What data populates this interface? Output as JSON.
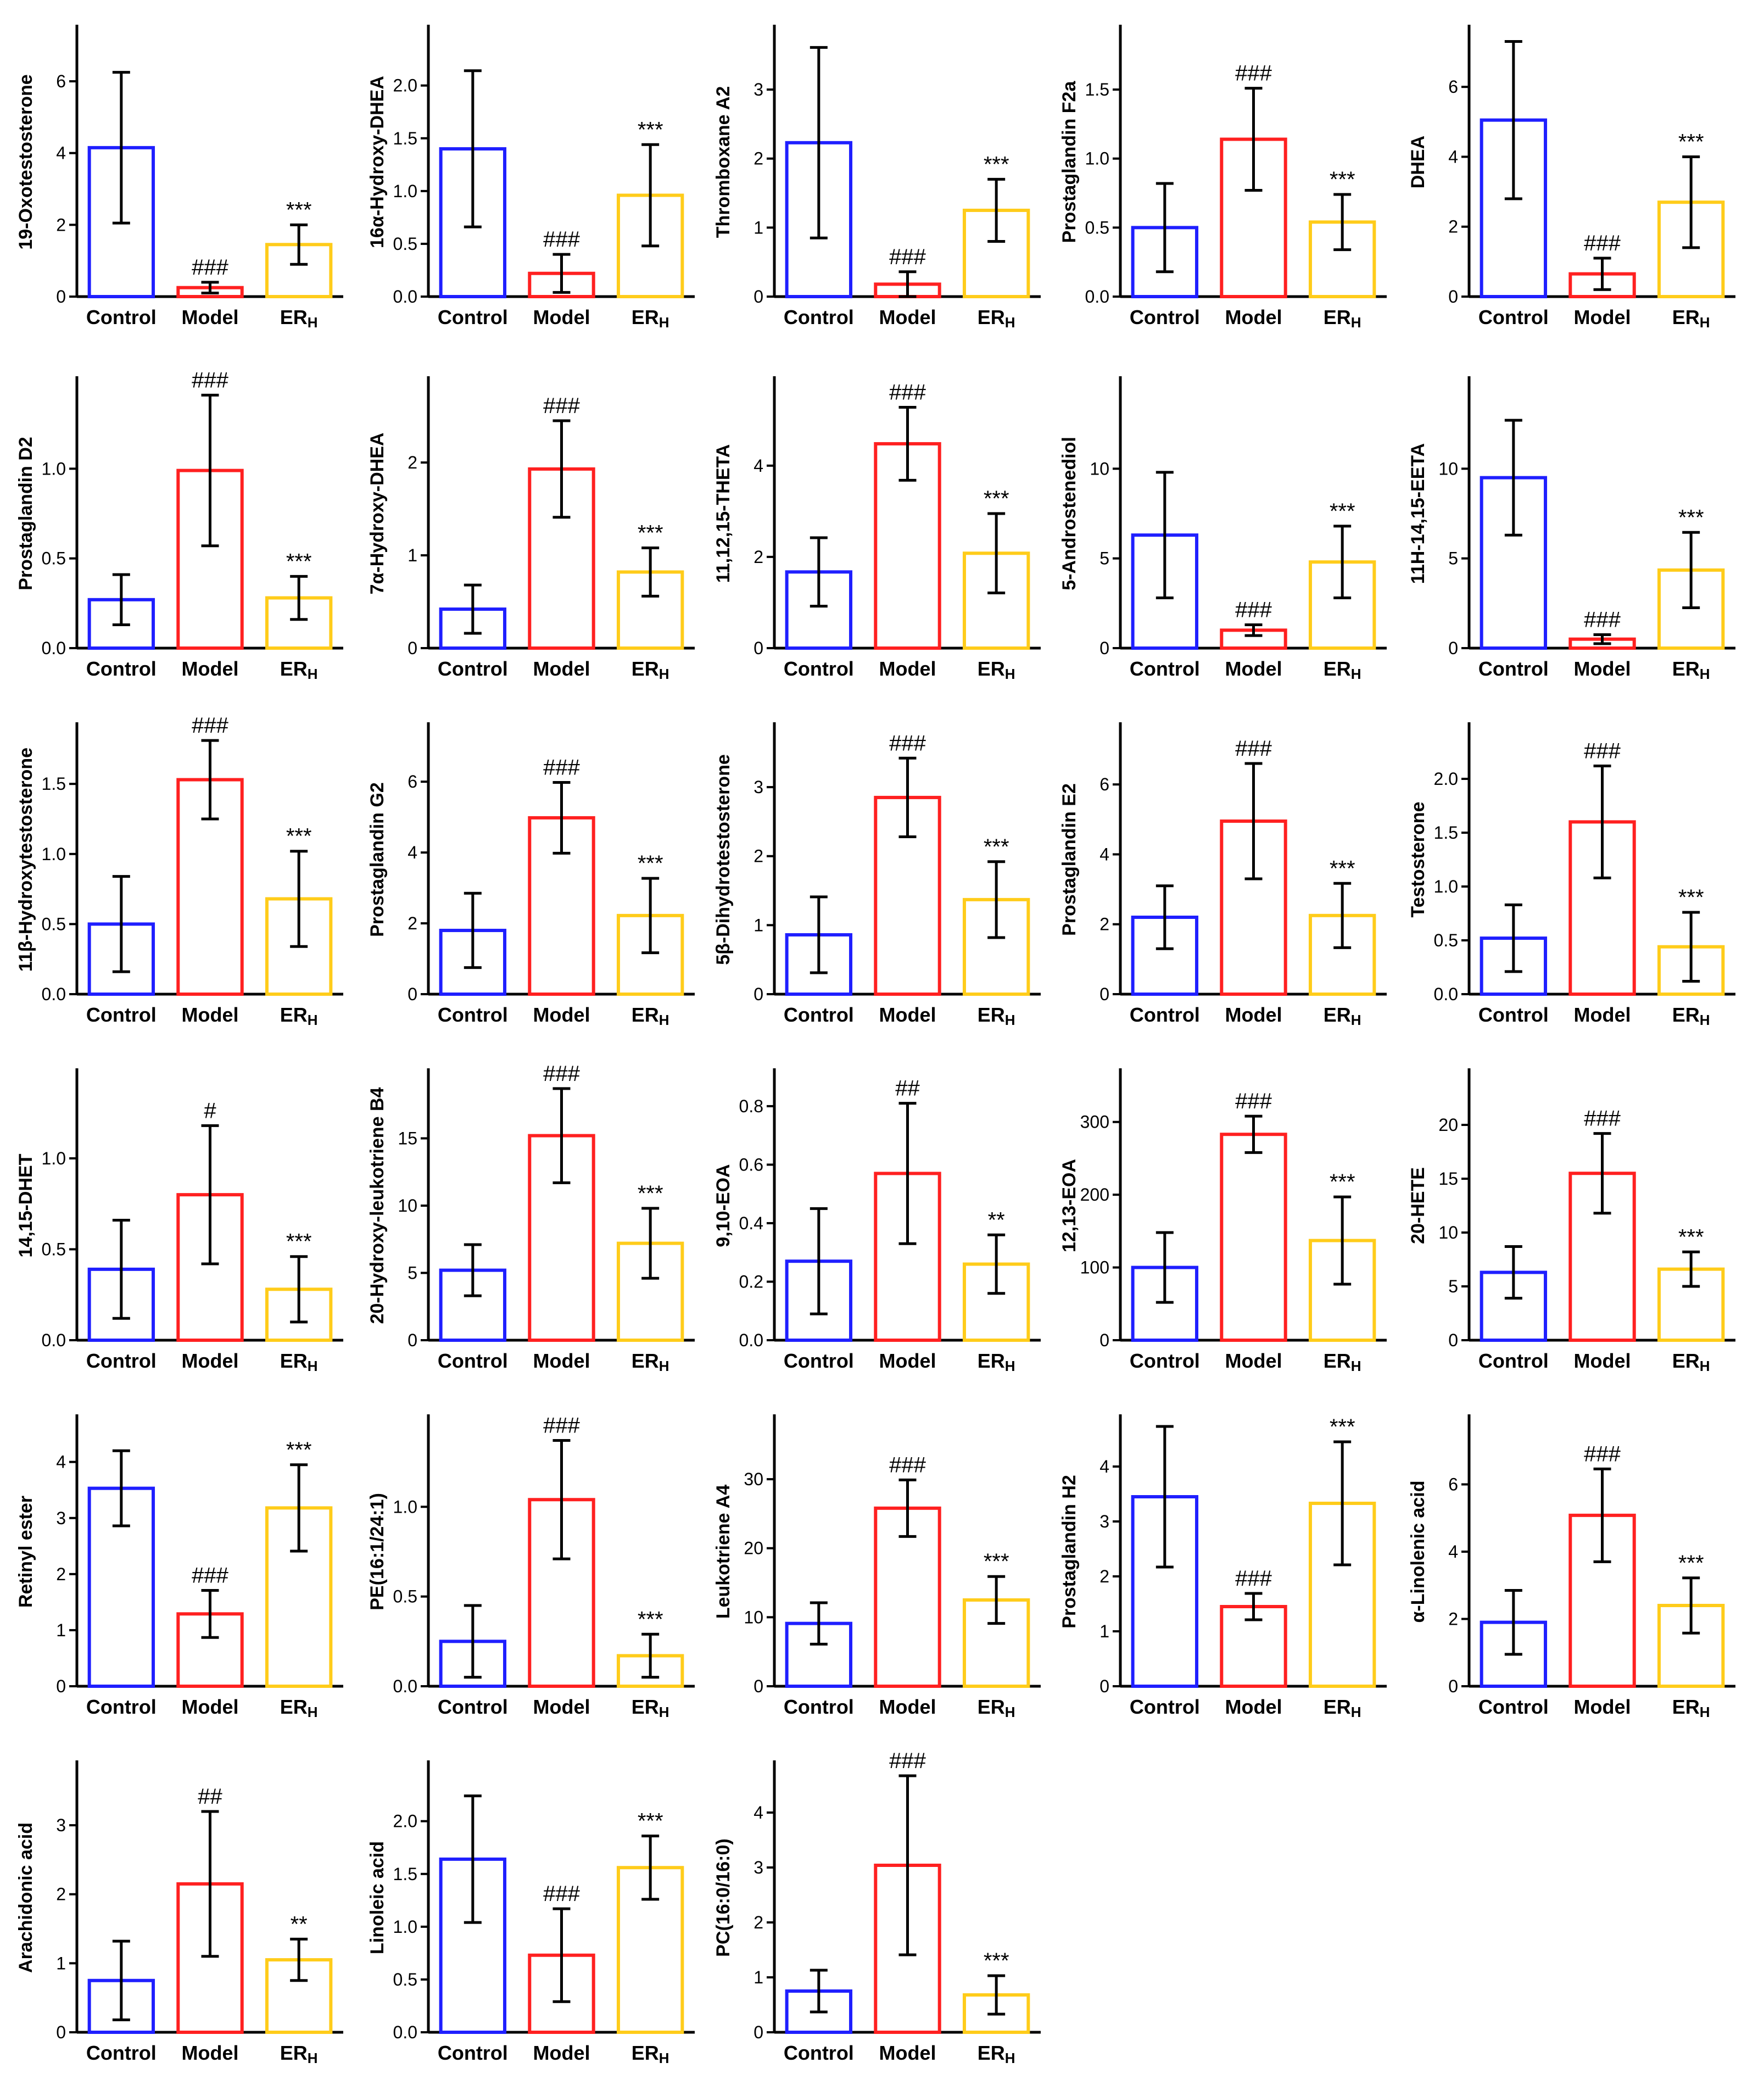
{
  "colors": {
    "Control": "#1f1fff",
    "Model": "#ff2020",
    "ERH": "#ffcc1a"
  },
  "chart_data": [
    {
      "type": "bar",
      "ylabel": "19-Oxotestosterone",
      "categories": [
        "Control",
        "Model",
        "ERH"
      ],
      "values": [
        4.15,
        0.25,
        1.45
      ],
      "errors": [
        2.1,
        0.15,
        0.55
      ],
      "ylim": [
        0,
        7.5
      ],
      "yticks": [
        0,
        2,
        4,
        6
      ],
      "yticklabels": [
        "0",
        "2",
        "4",
        "6"
      ],
      "annotations": [
        "",
        "###",
        "***"
      ]
    },
    {
      "type": "bar",
      "ylabel": "16α-Hydroxy-DHEA",
      "categories": [
        "Control",
        "Model",
        "ERH"
      ],
      "values": [
        1.4,
        0.22,
        0.96
      ],
      "errors": [
        0.74,
        0.18,
        0.48
      ],
      "ylim": [
        0,
        2.55
      ],
      "yticks": [
        0,
        0.5,
        1,
        1.5,
        2
      ],
      "yticklabels": [
        "0.0",
        "0.5",
        "1.0",
        "1.5",
        "2.0"
      ],
      "annotations": [
        "",
        "###",
        "***"
      ]
    },
    {
      "type": "bar",
      "ylabel": "Thromboxane A2",
      "categories": [
        "Control",
        "Model",
        "ERH"
      ],
      "values": [
        2.23,
        0.18,
        1.25
      ],
      "errors": [
        1.38,
        0.18,
        0.45
      ],
      "ylim": [
        0,
        3.9
      ],
      "yticks": [
        0,
        1,
        2,
        3
      ],
      "yticklabels": [
        "0",
        "1",
        "2",
        "3"
      ],
      "annotations": [
        "",
        "###",
        "***"
      ]
    },
    {
      "type": "bar",
      "ylabel": "Prostaglandin F2a",
      "categories": [
        "Control",
        "Model",
        "ERH"
      ],
      "values": [
        0.5,
        1.14,
        0.54
      ],
      "errors": [
        0.32,
        0.37,
        0.2
      ],
      "ylim": [
        0,
        1.95
      ],
      "yticks": [
        0,
        0.5,
        1,
        1.5
      ],
      "yticklabels": [
        "0.0",
        "0.5",
        "1.0",
        "1.5"
      ],
      "annotations": [
        "",
        "###",
        "***"
      ]
    },
    {
      "type": "bar",
      "ylabel": "DHEA",
      "categories": [
        "Control",
        "Model",
        "ERH"
      ],
      "values": [
        5.05,
        0.65,
        2.7
      ],
      "errors": [
        2.25,
        0.45,
        1.3
      ],
      "ylim": [
        0,
        7.7
      ],
      "yticks": [
        0,
        2,
        4,
        6
      ],
      "yticklabels": [
        "0",
        "2",
        "4",
        "6"
      ],
      "annotations": [
        "",
        "###",
        "***"
      ]
    },
    {
      "type": "bar",
      "ylabel": "Prostaglandin D2",
      "categories": [
        "Control",
        "Model",
        "ERH"
      ],
      "values": [
        0.27,
        0.99,
        0.28
      ],
      "errors": [
        0.14,
        0.42,
        0.12
      ],
      "ylim": [
        0,
        1.5
      ],
      "yticks": [
        0,
        0.5,
        1
      ],
      "yticklabels": [
        "0.0",
        "0.5",
        "1.0"
      ],
      "annotations": [
        "",
        "###",
        "***"
      ]
    },
    {
      "type": "bar",
      "ylabel": "7α-Hydroxy-DHEA",
      "categories": [
        "Control",
        "Model",
        "ERH"
      ],
      "values": [
        0.42,
        1.93,
        0.82
      ],
      "errors": [
        0.26,
        0.52,
        0.26
      ],
      "ylim": [
        0,
        2.9
      ],
      "yticks": [
        0,
        1,
        2
      ],
      "yticklabels": [
        "0",
        "1",
        "2"
      ],
      "annotations": [
        "",
        "###",
        "***"
      ]
    },
    {
      "type": "bar",
      "ylabel": "11,12,15-THETA",
      "categories": [
        "Control",
        "Model",
        "ERH"
      ],
      "values": [
        1.67,
        4.48,
        2.08
      ],
      "errors": [
        0.75,
        0.8,
        0.87
      ],
      "ylim": [
        0,
        5.9
      ],
      "yticks": [
        0,
        2,
        4
      ],
      "yticklabels": [
        "0",
        "2",
        "4"
      ],
      "annotations": [
        "",
        "###",
        "***"
      ]
    },
    {
      "type": "bar",
      "ylabel": "5-Androstenediol",
      "categories": [
        "Control",
        "Model",
        "ERH"
      ],
      "values": [
        6.3,
        1.0,
        4.8
      ],
      "errors": [
        3.5,
        0.3,
        2.0
      ],
      "ylim": [
        0,
        15
      ],
      "yticks": [
        0,
        5,
        10
      ],
      "yticklabels": [
        "0",
        "5",
        "10"
      ],
      "annotations": [
        "",
        "###",
        "***"
      ]
    },
    {
      "type": "bar",
      "ylabel": "11H-14,15-EETA",
      "categories": [
        "Control",
        "Model",
        "ERH"
      ],
      "values": [
        9.5,
        0.5,
        4.35
      ],
      "errors": [
        3.2,
        0.25,
        2.1
      ],
      "ylim": [
        0,
        15
      ],
      "yticks": [
        0,
        5,
        10
      ],
      "yticklabels": [
        "0",
        "5",
        "10"
      ],
      "annotations": [
        "",
        "###",
        "***"
      ]
    },
    {
      "type": "bar",
      "ylabel": "11β-Hydroxytestosterone",
      "categories": [
        "Control",
        "Model",
        "ERH"
      ],
      "values": [
        0.5,
        1.53,
        0.68
      ],
      "errors": [
        0.34,
        0.28,
        0.34
      ],
      "ylim": [
        0,
        1.92
      ],
      "yticks": [
        0,
        0.5,
        1,
        1.5
      ],
      "yticklabels": [
        "0.0",
        "0.5",
        "1.0",
        "1.5"
      ],
      "annotations": [
        "",
        "###",
        "***"
      ]
    },
    {
      "type": "bar",
      "ylabel": "Prostaglandin G2",
      "categories": [
        "Control",
        "Model",
        "ERH"
      ],
      "values": [
        1.8,
        4.98,
        2.22
      ],
      "errors": [
        1.05,
        1.0,
        1.05
      ],
      "ylim": [
        0,
        7.6
      ],
      "yticks": [
        0,
        2,
        4,
        6
      ],
      "yticklabels": [
        "0",
        "2",
        "4",
        "6"
      ],
      "annotations": [
        "",
        "###",
        "***"
      ]
    },
    {
      "type": "bar",
      "ylabel": "5β-Dihydrotestosterone",
      "categories": [
        "Control",
        "Model",
        "ERH"
      ],
      "values": [
        0.86,
        2.85,
        1.37
      ],
      "errors": [
        0.55,
        0.57,
        0.55
      ],
      "ylim": [
        0,
        3.9
      ],
      "yticks": [
        0,
        1,
        2,
        3
      ],
      "yticklabels": [
        "0",
        "1",
        "2",
        "3"
      ],
      "annotations": [
        "",
        "###",
        "***"
      ]
    },
    {
      "type": "bar",
      "ylabel": "Prostaglandin E2",
      "categories": [
        "Control",
        "Model",
        "ERH"
      ],
      "values": [
        2.2,
        4.95,
        2.25
      ],
      "errors": [
        0.9,
        1.65,
        0.92
      ],
      "ylim": [
        0,
        7.7
      ],
      "yticks": [
        0,
        2,
        4,
        6
      ],
      "yticklabels": [
        "0",
        "2",
        "4",
        "6"
      ],
      "annotations": [
        "",
        "###",
        "***"
      ]
    },
    {
      "type": "bar",
      "ylabel": "Testosterone",
      "categories": [
        "Control",
        "Model",
        "ERH"
      ],
      "values": [
        0.52,
        1.6,
        0.44
      ],
      "errors": [
        0.31,
        0.52,
        0.32
      ],
      "ylim": [
        0,
        2.5
      ],
      "yticks": [
        0,
        0.5,
        1,
        1.5,
        2
      ],
      "yticklabels": [
        "0.0",
        "0.5",
        "1.0",
        "1.5",
        "2.0"
      ],
      "annotations": [
        "",
        "###",
        "***"
      ]
    },
    {
      "type": "bar",
      "ylabel": "14,15-DHET",
      "categories": [
        "Control",
        "Model",
        "ERH"
      ],
      "values": [
        0.39,
        0.8,
        0.28
      ],
      "errors": [
        0.27,
        0.38,
        0.18
      ],
      "ylim": [
        0,
        1.48
      ],
      "yticks": [
        0,
        0.5,
        1
      ],
      "yticklabels": [
        "0.0",
        "0.5",
        "1.0"
      ],
      "annotations": [
        "",
        "#",
        "***"
      ]
    },
    {
      "type": "bar",
      "ylabel": "20-Hydroxy-leukotriene B4",
      "categories": [
        "Control",
        "Model",
        "ERH"
      ],
      "values": [
        5.2,
        15.2,
        7.2
      ],
      "errors": [
        1.9,
        3.5,
        2.6
      ],
      "ylim": [
        0,
        20
      ],
      "yticks": [
        0,
        5,
        10,
        15
      ],
      "yticklabels": [
        "0",
        "5",
        "10",
        "15"
      ],
      "annotations": [
        "",
        "###",
        "***"
      ]
    },
    {
      "type": "bar",
      "ylabel": "9,10-EOA",
      "categories": [
        "Control",
        "Model",
        "ERH"
      ],
      "values": [
        0.27,
        0.57,
        0.26
      ],
      "errors": [
        0.18,
        0.24,
        0.1
      ],
      "ylim": [
        0,
        0.92
      ],
      "yticks": [
        0,
        0.2,
        0.4,
        0.6,
        0.8
      ],
      "yticklabels": [
        "0.0",
        "0.2",
        "0.4",
        "0.6",
        "0.8"
      ],
      "annotations": [
        "",
        "##",
        "**"
      ]
    },
    {
      "type": "bar",
      "ylabel": "12,13-EOA",
      "categories": [
        "Control",
        "Model",
        "ERH"
      ],
      "values": [
        100,
        283,
        137
      ],
      "errors": [
        48,
        25,
        60
      ],
      "ylim": [
        0,
        370
      ],
      "yticks": [
        0,
        100,
        200,
        300
      ],
      "yticklabels": [
        "0",
        "100",
        "200",
        "300"
      ],
      "annotations": [
        "",
        "###",
        "***"
      ]
    },
    {
      "type": "bar",
      "ylabel": "20-HETE",
      "categories": [
        "Control",
        "Model",
        "ERH"
      ],
      "values": [
        6.3,
        15.5,
        6.6
      ],
      "errors": [
        2.4,
        3.7,
        1.6
      ],
      "ylim": [
        0,
        25
      ],
      "yticks": [
        0,
        5,
        10,
        15,
        20
      ],
      "yticklabels": [
        "0",
        "5",
        "10",
        "15",
        "20"
      ],
      "annotations": [
        "",
        "###",
        "***"
      ]
    },
    {
      "type": "bar",
      "ylabel": "Retinyl ester",
      "categories": [
        "Control",
        "Model",
        "ERH"
      ],
      "values": [
        3.53,
        1.29,
        3.18
      ],
      "errors": [
        0.67,
        0.42,
        0.77
      ],
      "ylim": [
        0,
        4.8
      ],
      "yticks": [
        0,
        1,
        2,
        3,
        4
      ],
      "yticklabels": [
        "0",
        "1",
        "2",
        "3",
        "4"
      ],
      "annotations": [
        "",
        "###",
        "***"
      ]
    },
    {
      "type": "bar",
      "ylabel": "PE(16:1/24:1)",
      "categories": [
        "Control",
        "Model",
        "ERH"
      ],
      "values": [
        0.25,
        1.04,
        0.17
      ],
      "errors": [
        0.2,
        0.33,
        0.12
      ],
      "ylim": [
        0,
        1.5
      ],
      "yticks": [
        0,
        0.5,
        1
      ],
      "yticklabels": [
        "0.0",
        "0.5",
        "1.0"
      ],
      "annotations": [
        "",
        "###",
        "***"
      ]
    },
    {
      "type": "bar",
      "ylabel": "Leukotriene A4",
      "categories": [
        "Control",
        "Model",
        "ERH"
      ],
      "values": [
        9.1,
        25.8,
        12.5
      ],
      "errors": [
        3.0,
        4.1,
        3.4
      ],
      "ylim": [
        0,
        39
      ],
      "yticks": [
        0,
        10,
        20,
        30
      ],
      "yticklabels": [
        "0",
        "10",
        "20",
        "30"
      ],
      "annotations": [
        "",
        "###",
        "***"
      ]
    },
    {
      "type": "bar",
      "ylabel": "Prostaglandin H2",
      "categories": [
        "Control",
        "Model",
        "ERH"
      ],
      "values": [
        3.45,
        1.45,
        3.33
      ],
      "errors": [
        1.28,
        0.24,
        1.12
      ],
      "ylim": [
        0,
        4.9
      ],
      "yticks": [
        0,
        1,
        2,
        3,
        4
      ],
      "yticklabels": [
        "0",
        "1",
        "2",
        "3",
        "4"
      ],
      "annotations": [
        "",
        "###",
        "***"
      ]
    },
    {
      "type": "bar",
      "ylabel": "α-Linolenic acid",
      "categories": [
        "Control",
        "Model",
        "ERH"
      ],
      "values": [
        1.9,
        5.08,
        2.4
      ],
      "errors": [
        0.95,
        1.38,
        0.82
      ],
      "ylim": [
        0,
        8
      ],
      "yticks": [
        0,
        2,
        4,
        6
      ],
      "yticklabels": [
        "0",
        "2",
        "4",
        "6"
      ],
      "annotations": [
        "",
        "###",
        "***"
      ]
    },
    {
      "type": "bar",
      "ylabel": "Arachidonic acid",
      "categories": [
        "Control",
        "Model",
        "ERH"
      ],
      "values": [
        0.75,
        2.15,
        1.05
      ],
      "errors": [
        0.57,
        1.05,
        0.3
      ],
      "ylim": [
        0,
        3.9
      ],
      "yticks": [
        0,
        1,
        2,
        3
      ],
      "yticklabels": [
        "0",
        "1",
        "2",
        "3"
      ],
      "annotations": [
        "",
        "##",
        "**"
      ]
    },
    {
      "type": "bar",
      "ylabel": "Linoleic acid",
      "categories": [
        "Control",
        "Model",
        "ERH"
      ],
      "values": [
        1.64,
        0.73,
        1.56
      ],
      "errors": [
        0.6,
        0.44,
        0.3
      ],
      "ylim": [
        0,
        2.55
      ],
      "yticks": [
        0,
        0.5,
        1,
        1.5,
        2
      ],
      "yticklabels": [
        "0.0",
        "0.5",
        "1.0",
        "1.5",
        "2.0"
      ],
      "annotations": [
        "",
        "###",
        "***"
      ]
    },
    {
      "type": "bar",
      "ylabel": "PC(16:0/16:0)",
      "categories": [
        "Control",
        "Model",
        "ERH"
      ],
      "values": [
        0.75,
        3.04,
        0.68
      ],
      "errors": [
        0.38,
        1.63,
        0.35
      ],
      "ylim": [
        0,
        4.9
      ],
      "yticks": [
        0,
        1,
        2,
        3,
        4
      ],
      "yticklabels": [
        "0",
        "1",
        "2",
        "3",
        "4"
      ],
      "annotations": [
        "",
        "###",
        "***"
      ]
    }
  ]
}
